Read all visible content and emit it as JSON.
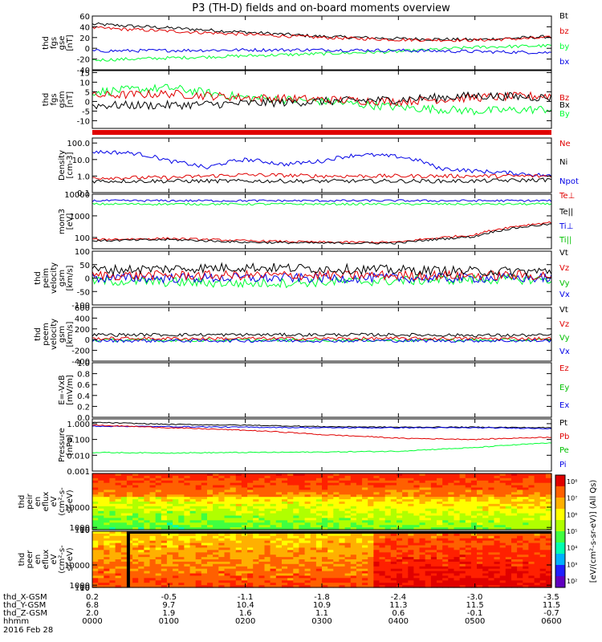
{
  "title": "P3 (TH-D) fields and on-board moments overview",
  "date_label": "2016 Feb 28",
  "colors": {
    "black": "#000000",
    "red": "#e00000",
    "green": "#00ff33",
    "blue": "#0000e6"
  },
  "colorbar_label": "[eV/(cm²-s-sr-eV)] (All Qs)",
  "colorbar_ticks": [
    "10⁸",
    "10⁷",
    "10⁶",
    "10⁵",
    "10⁴",
    "10³",
    "10²"
  ],
  "bottom_axis": {
    "row_labels": [
      "thd_X-GSM",
      "thd_Y-GSM",
      "thd_Z-GSM",
      "hhmm"
    ],
    "columns": [
      [
        "0.2",
        "6.8",
        "2.0",
        "0000"
      ],
      [
        "-0.5",
        "9.7",
        "1.9",
        "0100"
      ],
      [
        "-1.1",
        "10.4",
        "1.6",
        "0200"
      ],
      [
        "-1.8",
        "10.9",
        "1.1",
        "0300"
      ],
      [
        "-2.4",
        "11.3",
        "0.6",
        "0400"
      ],
      [
        "-3.0",
        "11.5",
        "-0.1",
        "0500"
      ],
      [
        "-3.5",
        "11.5",
        "-0.7",
        "0600"
      ]
    ]
  },
  "chart_data": [
    {
      "type": "line",
      "id": "fgs_gse",
      "ylabel": [
        "thd",
        "fgs",
        "gse",
        "[nT]"
      ],
      "yticks": [
        60,
        40,
        20,
        0,
        -20,
        -40
      ],
      "ylim": [
        -40,
        60
      ],
      "xlim": [
        0,
        6
      ],
      "legend": [
        "Bt",
        "bz",
        "by",
        "bx"
      ],
      "series": [
        {
          "name": "Bt",
          "color": "black",
          "x": [
            0,
            1,
            2,
            3,
            4,
            5,
            6
          ],
          "y": [
            45,
            38,
            30,
            22,
            18,
            16,
            22
          ]
        },
        {
          "name": "bz",
          "color": "red",
          "x": [
            0,
            1,
            2,
            3,
            4,
            5,
            6
          ],
          "y": [
            38,
            32,
            26,
            20,
            16,
            15,
            20
          ]
        },
        {
          "name": "by",
          "color": "green",
          "x": [
            0,
            1,
            2,
            3,
            4,
            5,
            6
          ],
          "y": [
            -22,
            -18,
            -14,
            -10,
            -6,
            2,
            5
          ]
        },
        {
          "name": "bx",
          "color": "blue",
          "x": [
            0,
            1,
            2,
            3,
            4,
            5,
            6
          ],
          "y": [
            -5,
            -4,
            -3,
            -3,
            -4,
            -6,
            -8
          ]
        }
      ]
    },
    {
      "type": "line",
      "id": "fgs_gsm",
      "ylabel": [
        "thd",
        "fgs",
        "gsm",
        "[nT]"
      ],
      "yticks": [
        15,
        10,
        5,
        0,
        -5,
        -10
      ],
      "ylim": [
        -14,
        16
      ],
      "xlim": [
        0,
        6
      ],
      "legend": [
        "Bz",
        "Bx",
        "By"
      ],
      "series": [
        {
          "name": "By",
          "color": "green",
          "x": [
            0,
            1,
            2,
            3,
            4,
            5,
            6
          ],
          "y": [
            5,
            7,
            2,
            0,
            -3,
            -5,
            -4
          ]
        },
        {
          "name": "Bz",
          "color": "red",
          "x": [
            0,
            1,
            2,
            3,
            4,
            5,
            6
          ],
          "y": [
            3,
            4,
            2,
            1,
            0,
            2,
            3
          ]
        },
        {
          "name": "Bx",
          "color": "black",
          "x": [
            0,
            1,
            2,
            3,
            4,
            5,
            6
          ],
          "y": [
            -2,
            -2,
            -1,
            0,
            1,
            3,
            2
          ]
        }
      ]
    },
    {
      "type": "line",
      "id": "density",
      "log": true,
      "ylabel": [
        "Density",
        "[cm-3]"
      ],
      "yticks": [
        100.0,
        10.0,
        1.0,
        0.1
      ],
      "ytick_labels": [
        "100.0",
        "10.0",
        "1.0",
        "0.1"
      ],
      "ylim": [
        0.1,
        200
      ],
      "xlim": [
        0,
        6
      ],
      "legend": [
        "Ne",
        "Ni",
        "Npot"
      ],
      "series": [
        {
          "name": "Npot",
          "color": "blue",
          "x": [
            0,
            0.5,
            1,
            1.5,
            2,
            2.5,
            3,
            3.5,
            4,
            4.5,
            5,
            5.5,
            6
          ],
          "y": [
            30,
            25,
            8,
            3,
            10,
            5,
            8,
            20,
            15,
            3,
            2,
            1.5,
            1.0
          ]
        },
        {
          "name": "Ne",
          "color": "red",
          "x": [
            0,
            1,
            2,
            3,
            4,
            5,
            6
          ],
          "y": [
            0.8,
            0.8,
            1.2,
            1.0,
            1.0,
            1.0,
            1.0
          ]
        },
        {
          "name": "Ni",
          "color": "black",
          "x": [
            0,
            1,
            2,
            3,
            4,
            5,
            6
          ],
          "y": [
            0.5,
            0.5,
            0.5,
            0.5,
            0.5,
            0.5,
            0.6
          ]
        }
      ]
    },
    {
      "type": "line",
      "id": "temperature",
      "log": true,
      "ylabel": [
        "mom3",
        "[eV]"
      ],
      "yticks": [
        10000,
        1000,
        100
      ],
      "ytick_labels": [
        "10000",
        "1000",
        "100"
      ],
      "ylim": [
        30,
        10000
      ],
      "xlim": [
        0,
        6
      ],
      "legend": [
        "Te⊥",
        "Te||",
        "Ti⊥",
        "Ti||"
      ],
      "series": [
        {
          "name": "Ti||",
          "color": "green",
          "x": [
            0,
            1,
            2,
            3,
            4,
            5,
            6
          ],
          "y": [
            3500,
            3500,
            3500,
            3500,
            3500,
            3500,
            3500
          ]
        },
        {
          "name": "Ti⊥",
          "color": "blue",
          "x": [
            0,
            1,
            2,
            3,
            4,
            5,
            6
          ],
          "y": [
            5000,
            5000,
            5000,
            5000,
            5000,
            5000,
            5000
          ]
        },
        {
          "name": "Te⊥",
          "color": "red",
          "x": [
            0,
            1,
            2,
            3,
            4,
            5,
            6
          ],
          "y": [
            80,
            90,
            70,
            60,
            60,
            130,
            500
          ]
        },
        {
          "name": "Te||",
          "color": "black",
          "x": [
            0,
            1,
            2,
            3,
            4,
            5,
            6
          ],
          "y": [
            70,
            80,
            60,
            55,
            55,
            110,
            420
          ]
        }
      ]
    },
    {
      "type": "line",
      "id": "peim_velocity",
      "ylabel": [
        "thd",
        "peim",
        "velocity",
        "gsm",
        "[km/s]"
      ],
      "yticks": [
        100,
        50,
        0,
        -50,
        -100
      ],
      "ylim": [
        -100,
        100
      ],
      "xlim": [
        0,
        6
      ],
      "legend": [
        "Vt",
        "Vz",
        "Vy",
        "Vx"
      ],
      "series": [
        {
          "name": "Vy",
          "color": "green",
          "x": [
            0,
            1,
            2,
            3,
            4,
            5,
            6
          ],
          "y": [
            -10,
            -15,
            -20,
            -15,
            -10,
            -5,
            -5
          ]
        },
        {
          "name": "Vx",
          "color": "blue",
          "x": [
            0,
            1,
            2,
            3,
            4,
            5,
            6
          ],
          "y": [
            0,
            0,
            0,
            0,
            0,
            0,
            0
          ]
        },
        {
          "name": "Vz",
          "color": "red",
          "x": [
            0,
            1,
            2,
            3,
            4,
            5,
            6
          ],
          "y": [
            10,
            10,
            10,
            10,
            10,
            10,
            10
          ]
        },
        {
          "name": "Vt",
          "color": "black",
          "x": [
            0,
            1,
            2,
            3,
            4,
            5,
            6
          ],
          "y": [
            30,
            35,
            40,
            35,
            30,
            25,
            25
          ]
        }
      ]
    },
    {
      "type": "line",
      "id": "peem_velocity",
      "ylabel": [
        "thd",
        "peem",
        "velocity",
        "gsm",
        "[km/s]"
      ],
      "yticks": [
        600,
        400,
        200,
        0,
        -200,
        -400
      ],
      "ylim": [
        -400,
        600
      ],
      "xlim": [
        0,
        6
      ],
      "legend": [
        "Vt",
        "Vz",
        "Vy",
        "Vx"
      ],
      "series": [
        {
          "name": "Vy",
          "color": "green",
          "x": [
            0,
            1,
            2,
            3,
            4,
            5,
            6
          ],
          "y": [
            -10,
            -10,
            -10,
            -10,
            -10,
            -10,
            -10
          ]
        },
        {
          "name": "Vx",
          "color": "blue",
          "x": [
            0,
            1,
            2,
            3,
            4,
            5,
            6
          ],
          "y": [
            -20,
            -20,
            -20,
            -20,
            -20,
            -20,
            -20
          ]
        },
        {
          "name": "Vz",
          "color": "red",
          "x": [
            0,
            1,
            2,
            3,
            4,
            5,
            6
          ],
          "y": [
            20,
            20,
            20,
            20,
            20,
            20,
            20
          ]
        },
        {
          "name": "Vt",
          "color": "black",
          "x": [
            0,
            1,
            2,
            3,
            4,
            5,
            6
          ],
          "y": [
            90,
            90,
            90,
            90,
            90,
            80,
            80
          ]
        }
      ]
    },
    {
      "type": "line",
      "id": "e_field",
      "ylabel": [
        "E=-VxB",
        "[mV/m]"
      ],
      "yticks": [
        1.0,
        0.8,
        0.6,
        0.4,
        0.2,
        0.0
      ],
      "ytick_labels": [
        "1.0",
        "0.8",
        "0.6",
        "0.4",
        "0.2",
        "0.0"
      ],
      "ylim": [
        0,
        1
      ],
      "xlim": [
        0,
        6
      ],
      "legend": [
        "Ez",
        "Ey",
        "Ex"
      ],
      "series": []
    },
    {
      "type": "line",
      "id": "pressure",
      "log": true,
      "ylabel": [
        "Pressure",
        "[nPa]"
      ],
      "yticks": [
        1.0,
        0.1,
        0.01,
        0.001
      ],
      "ytick_labels": [
        "1.000",
        "0.100",
        "0.010",
        "0.001"
      ],
      "ylim": [
        0.001,
        2
      ],
      "xlim": [
        0,
        6
      ],
      "legend": [
        "Pt",
        "Pb",
        "Pe",
        "Pi"
      ],
      "series": [
        {
          "name": "Pt",
          "color": "black",
          "x": [
            0,
            1,
            2,
            3,
            4,
            5,
            6
          ],
          "y": [
            1.2,
            0.9,
            0.8,
            0.65,
            0.6,
            0.6,
            0.55
          ]
        },
        {
          "name": "Pi",
          "color": "blue",
          "x": [
            0,
            1,
            2,
            3,
            4,
            5,
            6
          ],
          "y": [
            0.7,
            0.65,
            0.6,
            0.55,
            0.55,
            0.55,
            0.5
          ]
        },
        {
          "name": "Pb",
          "color": "red",
          "x": [
            0,
            1,
            2,
            3,
            4,
            5,
            6
          ],
          "y": [
            0.8,
            0.55,
            0.38,
            0.2,
            0.12,
            0.1,
            0.14
          ]
        },
        {
          "name": "Pe",
          "color": "green",
          "x": [
            0,
            1,
            2,
            3,
            4,
            5,
            6
          ],
          "y": [
            0.015,
            0.014,
            0.015,
            0.016,
            0.018,
            0.03,
            0.06
          ]
        }
      ]
    },
    {
      "type": "heatmap",
      "id": "peir_spectrogram",
      "ylabel": [
        "thd",
        "peir",
        "en",
        "eflux",
        "eV",
        "(cm²-s-",
        "sr-eV)"
      ],
      "yticks": [
        10000,
        1000,
        100,
        10
      ],
      "ytick_labels": [
        "10000",
        "1000",
        "100",
        "10"
      ],
      "ylim": [
        6,
        25000
      ],
      "xlim": [
        0,
        6
      ]
    },
    {
      "type": "heatmap",
      "id": "peer_spectrogram",
      "ylabel": [
        "thd",
        "peer",
        "en",
        "eflux",
        "eV",
        "(cm²-s-",
        "sr-eV)"
      ],
      "yticks": [
        10000,
        1000,
        100,
        10
      ],
      "ytick_labels": [
        "10000",
        "1000",
        "100",
        "10"
      ],
      "ylim": [
        6,
        25000
      ],
      "xlim": [
        0,
        6
      ]
    }
  ]
}
